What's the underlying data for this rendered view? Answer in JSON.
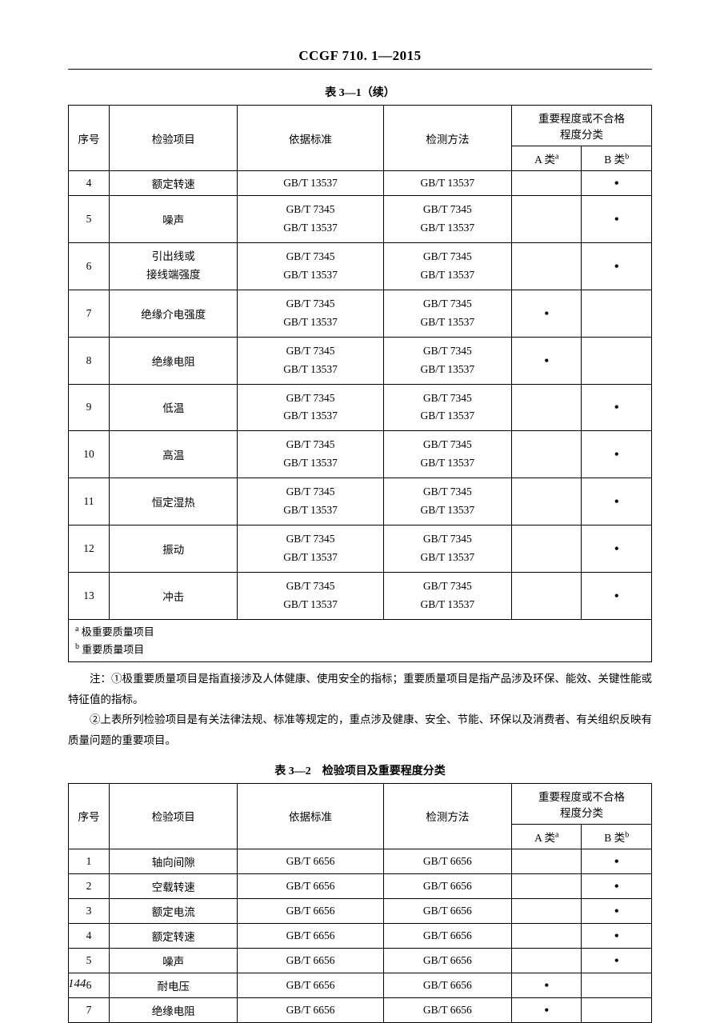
{
  "header": "CCGF 710. 1—2015",
  "table1": {
    "caption": "表 3—1（续）",
    "headers": {
      "seq": "序号",
      "item": "检验项目",
      "standard": "依据标准",
      "method": "检测方法",
      "importance": "重要程度或不合格\n程度分类",
      "classA": "A 类",
      "classA_sup": "a",
      "classB": "B 类",
      "classB_sup": "b"
    },
    "rows": [
      {
        "seq": "4",
        "item": "额定转速",
        "std": "GB/T 13537",
        "meth": "GB/T 13537",
        "a": "",
        "b": "•"
      },
      {
        "seq": "5",
        "item": "噪声",
        "std": "GB/T 7345\nGB/T 13537",
        "meth": "GB/T 7345\nGB/T 13537",
        "a": "",
        "b": "•"
      },
      {
        "seq": "6",
        "item": "引出线或\n接线端强度",
        "std": "GB/T 7345\nGB/T 13537",
        "meth": "GB/T 7345\nGB/T 13537",
        "a": "",
        "b": "•"
      },
      {
        "seq": "7",
        "item": "绝缘介电强度",
        "std": "GB/T 7345\nGB/T 13537",
        "meth": "GB/T 7345\nGB/T 13537",
        "a": "•",
        "b": ""
      },
      {
        "seq": "8",
        "item": "绝缘电阻",
        "std": "GB/T 7345\nGB/T 13537",
        "meth": "GB/T 7345\nGB/T 13537",
        "a": "•",
        "b": ""
      },
      {
        "seq": "9",
        "item": "低温",
        "std": "GB/T 7345\nGB/T 13537",
        "meth": "GB/T 7345\nGB/T 13537",
        "a": "",
        "b": "•"
      },
      {
        "seq": "10",
        "item": "高温",
        "std": "GB/T 7345\nGB/T 13537",
        "meth": "GB/T 7345\nGB/T 13537",
        "a": "",
        "b": "•"
      },
      {
        "seq": "11",
        "item": "恒定湿热",
        "std": "GB/T 7345\nGB/T 13537",
        "meth": "GB/T 7345\nGB/T 13537",
        "a": "",
        "b": "•"
      },
      {
        "seq": "12",
        "item": "振动",
        "std": "GB/T 7345\nGB/T 13537",
        "meth": "GB/T 7345\nGB/T 13537",
        "a": "",
        "b": "•"
      },
      {
        "seq": "13",
        "item": "冲击",
        "std": "GB/T 7345\nGB/T 13537",
        "meth": "GB/T 7345\nGB/T 13537",
        "a": "",
        "b": "•"
      }
    ],
    "footnote_a_sup": "a",
    "footnote_a": " 极重要质量项目",
    "footnote_b_sup": "b",
    "footnote_b": " 重要质量项目"
  },
  "notes": {
    "line1": "注：①极重要质量项目是指直接涉及人体健康、使用安全的指标；重要质量项目是指产品涉及环保、能效、关键性能或特征值的指标。",
    "line2": "②上表所列检验项目是有关法律法规、标准等规定的，重点涉及健康、安全、节能、环保以及消费者、有关组织反映有质量问题的重要项目。"
  },
  "table2": {
    "caption": "表 3—2　检验项目及重要程度分类",
    "headers": {
      "seq": "序号",
      "item": "检验项目",
      "standard": "依据标准",
      "method": "检测方法",
      "importance": "重要程度或不合格\n程度分类",
      "classA": "A 类",
      "classA_sup": "a",
      "classB": "B 类",
      "classB_sup": "b"
    },
    "rows": [
      {
        "seq": "1",
        "item": "轴向间隙",
        "std": "GB/T 6656",
        "meth": "GB/T 6656",
        "a": "",
        "b": "•"
      },
      {
        "seq": "2",
        "item": "空载转速",
        "std": "GB/T 6656",
        "meth": "GB/T 6656",
        "a": "",
        "b": "•"
      },
      {
        "seq": "3",
        "item": "额定电流",
        "std": "GB/T 6656",
        "meth": "GB/T 6656",
        "a": "",
        "b": "•"
      },
      {
        "seq": "4",
        "item": "额定转速",
        "std": "GB/T 6656",
        "meth": "GB/T 6656",
        "a": "",
        "b": "•"
      },
      {
        "seq": "5",
        "item": "噪声",
        "std": "GB/T 6656",
        "meth": "GB/T 6656",
        "a": "",
        "b": "•"
      },
      {
        "seq": "6",
        "item": "耐电压",
        "std": "GB/T 6656",
        "meth": "GB/T 6656",
        "a": "•",
        "b": ""
      },
      {
        "seq": "7",
        "item": "绝缘电阻",
        "std": "GB/T 6656",
        "meth": "GB/T 6656",
        "a": "•",
        "b": ""
      }
    ]
  },
  "page_number": "144"
}
